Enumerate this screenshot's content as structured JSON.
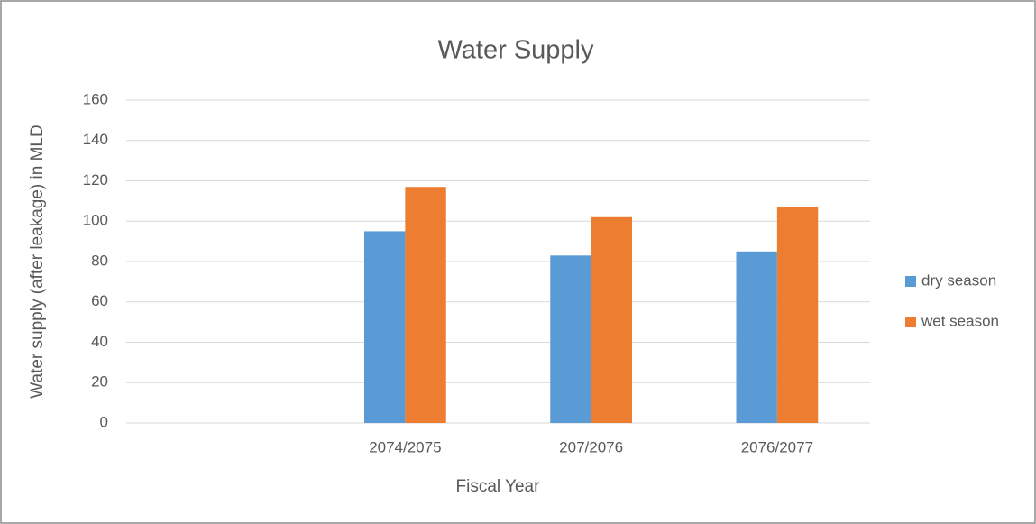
{
  "chart_data": {
    "type": "bar",
    "title": "Water Supply",
    "x_label": "Fiscal Year",
    "y_label": "Water supply (after leakage) in MLD",
    "categories": [
      null,
      "2074/2075",
      "207/2076",
      "2076/2077"
    ],
    "series": [
      {
        "name": "dry season",
        "color": "#5b9bd5",
        "values": [
          null,
          95,
          83,
          85
        ]
      },
      {
        "name": "wet season",
        "color": "#ed7d31",
        "values": [
          null,
          117,
          102,
          107
        ]
      }
    ],
    "ylim": [
      0,
      160
    ],
    "yticks": [
      0,
      20,
      40,
      60,
      80,
      100,
      120,
      140,
      160
    ],
    "grid": true,
    "legend": "right"
  }
}
